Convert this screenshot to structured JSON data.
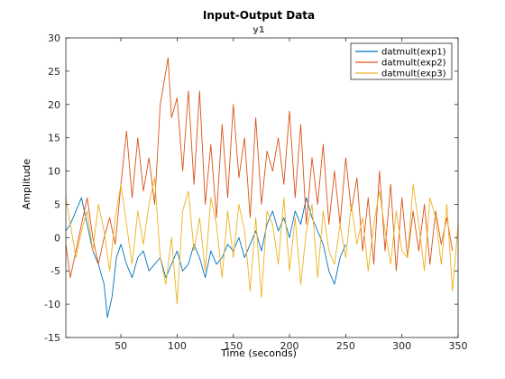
{
  "chart_data": {
    "type": "line",
    "title": "Input-Output Data",
    "subtitle": "y1",
    "xlabel": "Time (seconds)",
    "ylabel": "Amplitude",
    "xlim": [
      1,
      350
    ],
    "ylim": [
      -15,
      30
    ],
    "xticks": [
      50,
      100,
      150,
      200,
      250,
      300,
      350
    ],
    "yticks": [
      -15,
      -10,
      -5,
      0,
      5,
      10,
      15,
      20,
      25,
      30
    ],
    "grid": false,
    "legend_position": "top-right",
    "series": [
      {
        "name": "datmult(exp1)",
        "color": "#0072BD",
        "x": [
          1,
          5,
          10,
          15,
          20,
          25,
          30,
          35,
          38,
          42,
          46,
          50,
          55,
          60,
          65,
          70,
          75,
          80,
          85,
          90,
          95,
          100,
          105,
          110,
          115,
          120,
          125,
          130,
          135,
          140,
          145,
          150,
          155,
          160,
          165,
          170,
          175,
          180,
          185,
          190,
          195,
          200,
          205,
          210,
          215,
          220,
          225,
          230,
          235,
          240,
          245,
          250
        ],
        "y": [
          1,
          2,
          4,
          6,
          2,
          -2,
          -4,
          -7,
          -12,
          -9,
          -3,
          -1,
          -4,
          -6,
          -3,
          -2,
          -5,
          -4,
          -3,
          -6,
          -4,
          -2,
          -5,
          -4,
          -1,
          -3,
          -6,
          -2,
          -4,
          -3,
          -1,
          -2,
          0,
          -3,
          -1,
          1,
          -2,
          2,
          4,
          1,
          3,
          0,
          4,
          2,
          6,
          3,
          1,
          -1,
          -5,
          -7,
          -3,
          -1
        ]
      },
      {
        "name": "datmult(exp2)",
        "color": "#D95319",
        "x": [
          1,
          5,
          10,
          15,
          20,
          25,
          30,
          35,
          40,
          45,
          50,
          55,
          60,
          65,
          70,
          75,
          80,
          85,
          90,
          92,
          95,
          100,
          105,
          110,
          115,
          120,
          125,
          130,
          135,
          140,
          145,
          150,
          155,
          160,
          165,
          170,
          175,
          180,
          185,
          190,
          195,
          200,
          205,
          210,
          215,
          220,
          225,
          230,
          235,
          240,
          245,
          250,
          255,
          260,
          265,
          270,
          275,
          280,
          285,
          290,
          295,
          300,
          305,
          310,
          315,
          320,
          325,
          330,
          335,
          340,
          345
        ],
        "y": [
          -1,
          -6,
          -2,
          2,
          6,
          0,
          -4,
          0,
          3,
          -1,
          8,
          16,
          6,
          15,
          7,
          12,
          5,
          20,
          25,
          27,
          18,
          21,
          10,
          22,
          8,
          22,
          5,
          14,
          3,
          17,
          6,
          20,
          9,
          15,
          3,
          18,
          5,
          13,
          10,
          15,
          8,
          19,
          6,
          17,
          2,
          12,
          5,
          14,
          2,
          10,
          2,
          12,
          4,
          9,
          -2,
          6,
          -4,
          10,
          -2,
          8,
          -5,
          6,
          -3,
          4,
          -2,
          5,
          -4,
          4,
          -1,
          3,
          -2
        ]
      },
      {
        "name": "datmult(exp3)",
        "color": "#EDB120",
        "x": [
          1,
          5,
          10,
          15,
          20,
          25,
          30,
          35,
          40,
          45,
          50,
          55,
          60,
          65,
          70,
          75,
          80,
          85,
          90,
          95,
          100,
          105,
          110,
          115,
          120,
          125,
          130,
          135,
          140,
          145,
          150,
          155,
          160,
          165,
          170,
          175,
          180,
          185,
          190,
          195,
          200,
          205,
          210,
          215,
          220,
          225,
          230,
          235,
          240,
          245,
          250,
          255,
          260,
          265,
          270,
          275,
          280,
          285,
          290,
          295,
          300,
          305,
          310,
          315,
          320,
          325,
          330,
          335,
          340,
          345,
          350
        ],
        "y": [
          6,
          2,
          -3,
          1,
          4,
          -2,
          5,
          1,
          -5,
          3,
          8,
          2,
          -4,
          4,
          -1,
          5,
          9,
          -3,
          -7,
          0,
          -10,
          4,
          7,
          -2,
          3,
          -5,
          6,
          2,
          -6,
          4,
          -3,
          5,
          1,
          -8,
          3,
          -9,
          4,
          2,
          -4,
          6,
          -5,
          3,
          -7,
          1,
          5,
          -6,
          4,
          -2,
          -4,
          2,
          -3,
          5,
          -1,
          3,
          -5,
          2,
          7,
          1,
          -4,
          4,
          -2,
          -3,
          8,
          2,
          -5,
          6,
          3,
          -4,
          5,
          -8,
          2
        ]
      }
    ]
  }
}
